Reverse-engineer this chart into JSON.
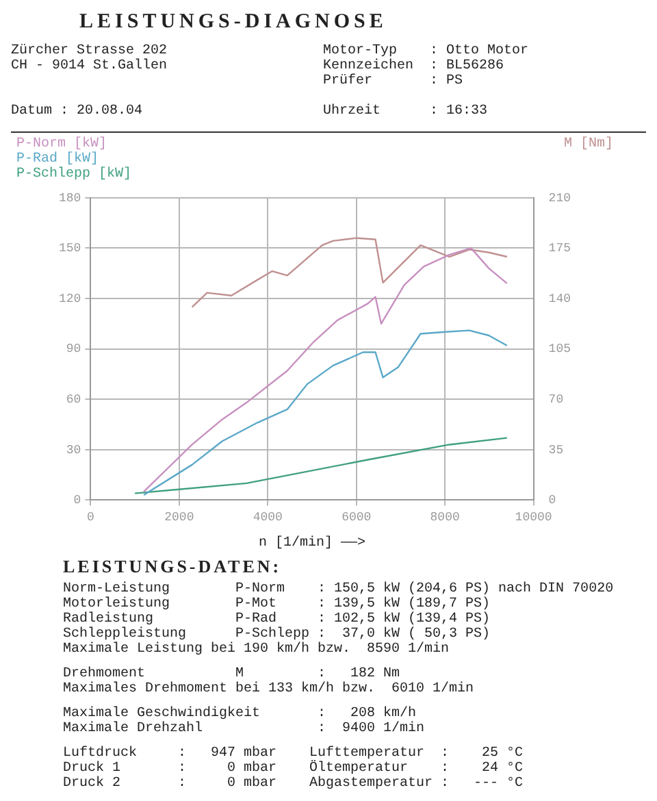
{
  "chart_data": {
    "type": "line",
    "title": "LEISTUNGS-DIAGNOSE",
    "subtitle": "Zürcher Strasse 202                   Motor-Typ    : Otto Motor\nCH - 9014 St.Gallen                   Kennzeichen  : BL56286\n                                      Prüfer       : PS\n\nDatum : 20.08.04                      Uhrzeit      : 16:33",
    "xlabel": "n [1/min] ——>",
    "xlim": [
      0,
      10000
    ],
    "xticks": [
      0,
      2000,
      4000,
      6000,
      8000,
      10000
    ],
    "ylim": [
      0,
      180
    ],
    "yticks": [
      0,
      30,
      60,
      90,
      120,
      150,
      180
    ],
    "y2lim": [
      0,
      210
    ],
    "y2ticks": [
      0,
      35,
      70,
      105,
      140,
      175,
      210
    ],
    "grid": true,
    "legend": "top",
    "series": [
      {
        "name": "P-Norm [kW]",
        "color": "#c890c0",
        "x": [
          1200,
          2290,
          2970,
          3520,
          4440,
          5030,
          5570,
          6260,
          6430,
          6560,
          7080,
          7520,
          8100,
          8590,
          8990,
          9400
        ],
        "values": [
          5,
          33,
          48,
          58,
          77,
          94,
          107,
          117,
          121,
          105,
          128,
          139,
          146,
          150,
          138,
          129
        ]
      },
      {
        "name": "P-Rad [kW]",
        "color": "#5aa8c8",
        "x": [
          1200,
          2290,
          2970,
          3760,
          4440,
          4890,
          5470,
          6150,
          6430,
          6600,
          6940,
          7450,
          7970,
          8550,
          8990,
          9400
        ],
        "values": [
          3,
          21,
          35,
          46,
          54,
          69,
          80,
          88,
          88,
          73,
          79,
          99,
          100,
          101,
          98,
          92
        ]
      },
      {
        "name": "P-Schlepp [kW]",
        "color": "#40a080",
        "x": [
          1000,
          3520,
          6260,
          8100,
          9400
        ],
        "values": [
          4,
          10,
          24,
          33,
          37
        ]
      },
      {
        "name": "M [Nm]",
        "color": "#c09090",
        "axis": "y2",
        "x": [
          2290,
          2630,
          3180,
          3660,
          4100,
          4440,
          5230,
          5470,
          6010,
          6430,
          6600,
          7450,
          8100,
          8550,
          8990,
          9400
        ],
        "values": [
          134,
          144,
          142,
          151,
          159,
          156,
          177,
          180,
          182,
          181,
          151,
          177,
          169,
          174,
          172,
          169
        ]
      }
    ],
    "annotations": [
      "LEISTUNGS-DATEN:",
      "Norm-Leistung        P-Norm    : 150,5 kW (204,6 PS) nach DIN 70020\nMotorleistung        P-Mot     : 139,5 kW (189,7 PS)\nRadleistung          P-Rad     : 102,5 kW (139,4 PS)\nSchleppleistung      P-Schlepp :  37,0 kW ( 50,3 PS)\nMaximale Leistung bei 190 km/h bzw.  8590 1/min",
      "Drehmoment           M         :   182 Nm\nMaximales Drehmoment bei 133 km/h bzw.  6010 1/min",
      "Maximale Geschwindigkeit       :   208 km/h\nMaximale Drehzahl              :  9400 1/min",
      "Luftdruck     :   947 mbar    Lufttemperatur  :    25 °C\nDruck 1       :     0 mbar    Öltemperatur    :    24 °C\nDruck 2       :     0 mbar    Abgastemperatur :   --- °C"
    ]
  }
}
